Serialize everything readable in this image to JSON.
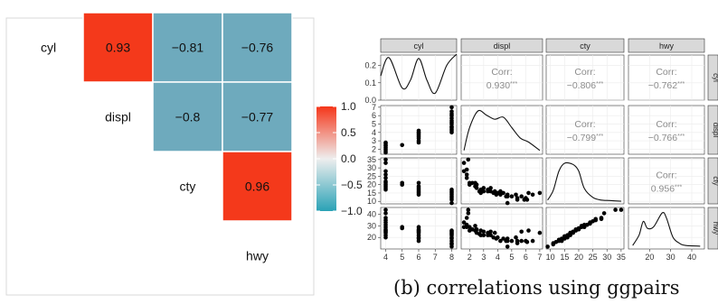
{
  "caption": "(b) correlations using ggpairs",
  "corr_label": "Corr:",
  "stars": "***",
  "chart_data": [
    {
      "type": "heatmap",
      "variables": [
        "cyl",
        "displ",
        "cty",
        "hwy"
      ],
      "cells": [
        {
          "row": "displ",
          "col": "cyl",
          "value": 0.93,
          "label": "0.93"
        },
        {
          "row": "cty",
          "col": "cyl",
          "value": -0.81,
          "label": "−0.81"
        },
        {
          "row": "cty",
          "col": "displ",
          "value": -0.8,
          "label": "−0.8"
        },
        {
          "row": "hwy",
          "col": "cyl",
          "value": -0.76,
          "label": "−0.76"
        },
        {
          "row": "hwy",
          "col": "displ",
          "value": -0.77,
          "label": "−0.77"
        },
        {
          "row": "hwy",
          "col": "cty",
          "value": 0.96,
          "label": "0.96"
        }
      ],
      "legend": {
        "min": -1.0,
        "max": 1.0,
        "ticks": [
          "1.0",
          "0.5",
          "0.0",
          "−0.5",
          "−1.0"
        ],
        "tick_values": [
          1.0,
          0.5,
          0.0,
          -0.5,
          -1.0
        ],
        "low_color": "#2aa2b6",
        "mid_color": "#eeeeee",
        "high_color": "#f5361a"
      },
      "tile_colors": {
        "strong_positive": "#f4391b",
        "strong_negative": "#6eaabd"
      }
    },
    {
      "type": "scatter",
      "variables": [
        "cyl",
        "displ",
        "cty",
        "hwy"
      ],
      "correlations": [
        {
          "row": "cyl",
          "col": "displ",
          "value": "0.930"
        },
        {
          "row": "cyl",
          "col": "cty",
          "value": "−0.806"
        },
        {
          "row": "cyl",
          "col": "hwy",
          "value": "−0.762"
        },
        {
          "row": "displ",
          "col": "cty",
          "value": "−0.799"
        },
        {
          "row": "displ",
          "col": "hwy",
          "value": "−0.766"
        },
        {
          "row": "cty",
          "col": "hwy",
          "value": "0.956"
        }
      ],
      "x_axes": {
        "cyl": {
          "range": [
            3.7,
            8.3
          ],
          "ticks": [
            4,
            5,
            6,
            7,
            8
          ]
        },
        "displ": {
          "range": [
            1.4,
            7.2
          ],
          "ticks": [
            2,
            3,
            4,
            5,
            6,
            7
          ]
        },
        "cty": {
          "range": [
            8.5,
            36
          ],
          "ticks": [
            10,
            15,
            20,
            25,
            30,
            35
          ]
        },
        "hwy": {
          "range": [
            10,
            46
          ],
          "ticks": [
            20,
            30,
            40
          ]
        }
      },
      "y_axes": {
        "cyl": {
          "range": [
            0,
            0.26
          ],
          "ticks": [
            "0.0",
            "0.1",
            "0.2"
          ],
          "tick_values": [
            0.0,
            0.1,
            0.2
          ]
        },
        "displ": {
          "range": [
            1.4,
            7.2
          ],
          "ticks": [
            2,
            3,
            4,
            5,
            6,
            7
          ]
        },
        "cty": {
          "range": [
            8.5,
            36
          ],
          "ticks": [
            10,
            15,
            20,
            25,
            30,
            35
          ]
        },
        "hwy": {
          "range": [
            10,
            46
          ],
          "ticks": [
            20,
            30,
            40
          ]
        }
      },
      "densities": {
        "cyl": {
          "x": [
            3.7,
            4.2,
            5.0,
            5.5,
            6.0,
            6.5,
            7.0,
            7.7,
            8.3
          ],
          "y": [
            0.14,
            0.245,
            0.07,
            0.115,
            0.24,
            0.115,
            0.04,
            0.2,
            0.265
          ]
        },
        "displ": {
          "x": [
            1.6,
            2.0,
            2.6,
            3.2,
            3.8,
            4.4,
            5.0,
            5.6,
            6.2,
            7.0
          ],
          "y": [
            0.05,
            0.6,
            1.0,
            0.9,
            0.8,
            0.85,
            0.6,
            0.35,
            0.25,
            0.05
          ]
        },
        "cty": {
          "x": [
            9,
            11,
            13,
            15,
            18,
            20,
            22,
            25,
            28,
            31,
            35
          ],
          "y": [
            0.05,
            0.3,
            0.8,
            1.0,
            0.97,
            0.8,
            0.35,
            0.12,
            0.05,
            0.04,
            0.02
          ]
        },
        "hwy": {
          "x": [
            12,
            15,
            17,
            19,
            22,
            26,
            28,
            31,
            34,
            37,
            44
          ],
          "y": [
            0.05,
            0.35,
            0.75,
            0.55,
            0.6,
            1.0,
            0.85,
            0.3,
            0.12,
            0.05,
            0.03
          ]
        }
      },
      "scatter_displ_vs_cyl": [
        [
          4,
          1.6
        ],
        [
          4,
          1.8
        ],
        [
          4,
          2.0
        ],
        [
          4,
          2.2
        ],
        [
          4,
          2.4
        ],
        [
          4,
          2.5
        ],
        [
          4,
          2.7
        ],
        [
          4,
          2.8
        ],
        [
          5,
          2.5
        ],
        [
          6,
          2.8
        ],
        [
          6,
          3.0
        ],
        [
          6,
          3.3
        ],
        [
          6,
          3.5
        ],
        [
          6,
          3.7
        ],
        [
          6,
          3.9
        ],
        [
          6,
          4.0
        ],
        [
          6,
          4.2
        ],
        [
          8,
          4.0
        ],
        [
          8,
          4.2
        ],
        [
          8,
          4.4
        ],
        [
          8,
          4.6
        ],
        [
          8,
          4.7
        ],
        [
          8,
          5.0
        ],
        [
          8,
          5.2
        ],
        [
          8,
          5.4
        ],
        [
          8,
          5.7
        ],
        [
          8,
          6.0
        ],
        [
          8,
          6.2
        ],
        [
          8,
          6.5
        ],
        [
          8,
          7.0
        ]
      ],
      "scatter_cty_vs_cyl": [
        [
          4,
          35
        ],
        [
          4,
          33
        ],
        [
          4,
          28
        ],
        [
          4,
          26
        ],
        [
          4,
          24
        ],
        [
          4,
          22
        ],
        [
          4,
          21
        ],
        [
          4,
          20
        ],
        [
          4,
          19
        ],
        [
          4,
          18
        ],
        [
          4,
          17
        ],
        [
          5,
          20
        ],
        [
          5,
          21
        ],
        [
          6,
          21
        ],
        [
          6,
          19
        ],
        [
          6,
          18
        ],
        [
          6,
          17
        ],
        [
          6,
          16
        ],
        [
          6,
          15
        ],
        [
          6,
          14
        ],
        [
          8,
          17
        ],
        [
          8,
          16
        ],
        [
          8,
          15
        ],
        [
          8,
          14
        ],
        [
          8,
          13
        ],
        [
          8,
          12
        ],
        [
          8,
          11
        ],
        [
          8,
          9
        ]
      ],
      "scatter_cty_vs_displ": [
        [
          1.6,
          33
        ],
        [
          1.6,
          28
        ],
        [
          1.8,
          29
        ],
        [
          1.8,
          26
        ],
        [
          1.8,
          24
        ],
        [
          1.9,
          35
        ],
        [
          2.0,
          21
        ],
        [
          2.0,
          20
        ],
        [
          2.2,
          21
        ],
        [
          2.4,
          19
        ],
        [
          2.4,
          21
        ],
        [
          2.5,
          18
        ],
        [
          2.5,
          20
        ],
        [
          2.7,
          16
        ],
        [
          2.8,
          17
        ],
        [
          2.8,
          15
        ],
        [
          3.0,
          18
        ],
        [
          3.0,
          16
        ],
        [
          3.3,
          17
        ],
        [
          3.3,
          16
        ],
        [
          3.5,
          18
        ],
        [
          3.5,
          16
        ],
        [
          3.7,
          15
        ],
        [
          3.8,
          16
        ],
        [
          3.9,
          14
        ],
        [
          4.0,
          15
        ],
        [
          4.2,
          16
        ],
        [
          4.2,
          14
        ],
        [
          4.4,
          15
        ],
        [
          4.6,
          13
        ],
        [
          4.7,
          14
        ],
        [
          4.7,
          13
        ],
        [
          4.7,
          9
        ],
        [
          5.0,
          13
        ],
        [
          5.3,
          14
        ],
        [
          5.4,
          12
        ],
        [
          5.4,
          11
        ],
        [
          5.7,
          13
        ],
        [
          5.9,
          11
        ],
        [
          6.0,
          12
        ],
        [
          6.1,
          11
        ],
        [
          6.2,
          15
        ],
        [
          6.5,
          14
        ],
        [
          7.0,
          15
        ]
      ],
      "scatter_hwy_vs_cyl": [
        [
          4,
          44
        ],
        [
          4,
          41
        ],
        [
          4,
          37
        ],
        [
          4,
          35
        ],
        [
          4,
          33
        ],
        [
          4,
          31
        ],
        [
          4,
          29
        ],
        [
          4,
          27
        ],
        [
          4,
          26
        ],
        [
          4,
          25
        ],
        [
          4,
          24
        ],
        [
          4,
          22
        ],
        [
          4,
          20
        ],
        [
          5,
          28
        ],
        [
          5,
          29
        ],
        [
          6,
          29
        ],
        [
          6,
          27
        ],
        [
          6,
          26
        ],
        [
          6,
          25
        ],
        [
          6,
          24
        ],
        [
          6,
          22
        ],
        [
          6,
          20
        ],
        [
          6,
          19
        ],
        [
          6,
          17
        ],
        [
          8,
          26
        ],
        [
          8,
          25
        ],
        [
          8,
          24
        ],
        [
          8,
          23
        ],
        [
          8,
          22
        ],
        [
          8,
          20
        ],
        [
          8,
          19
        ],
        [
          8,
          17
        ],
        [
          8,
          15
        ],
        [
          8,
          14
        ],
        [
          8,
          12
        ]
      ],
      "scatter_hwy_vs_displ": [
        [
          1.6,
          33
        ],
        [
          1.6,
          29
        ],
        [
          1.8,
          37
        ],
        [
          1.8,
          29
        ],
        [
          1.8,
          31
        ],
        [
          1.9,
          44
        ],
        [
          1.9,
          41
        ],
        [
          2.0,
          26
        ],
        [
          2.0,
          29
        ],
        [
          2.2,
          27
        ],
        [
          2.4,
          26
        ],
        [
          2.4,
          30
        ],
        [
          2.5,
          24
        ],
        [
          2.5,
          27
        ],
        [
          2.7,
          23
        ],
        [
          2.8,
          26
        ],
        [
          2.8,
          22
        ],
        [
          3.0,
          25
        ],
        [
          3.0,
          22
        ],
        [
          3.3,
          24
        ],
        [
          3.3,
          22
        ],
        [
          3.5,
          25
        ],
        [
          3.5,
          22
        ],
        [
          3.7,
          20
        ],
        [
          3.8,
          24
        ],
        [
          3.9,
          19
        ],
        [
          4.0,
          20
        ],
        [
          4.2,
          17
        ],
        [
          4.4,
          19
        ],
        [
          4.6,
          17
        ],
        [
          4.7,
          19
        ],
        [
          4.7,
          17
        ],
        [
          4.7,
          12
        ],
        [
          5.0,
          17
        ],
        [
          5.3,
          20
        ],
        [
          5.4,
          17
        ],
        [
          5.4,
          15
        ],
        [
          5.7,
          25
        ],
        [
          5.7,
          17
        ],
        [
          6.0,
          17
        ],
        [
          6.1,
          16
        ],
        [
          6.2,
          26
        ],
        [
          6.5,
          17
        ],
        [
          7.0,
          24
        ]
      ],
      "scatter_hwy_vs_cty": [
        [
          9,
          12
        ],
        [
          11,
          14
        ],
        [
          11,
          15
        ],
        [
          12,
          16
        ],
        [
          13,
          17
        ],
        [
          13,
          18
        ],
        [
          14,
          17
        ],
        [
          14,
          19
        ],
        [
          15,
          19
        ],
        [
          15,
          21
        ],
        [
          16,
          20
        ],
        [
          16,
          22
        ],
        [
          17,
          22
        ],
        [
          17,
          24
        ],
        [
          18,
          24
        ],
        [
          18,
          25
        ],
        [
          19,
          26
        ],
        [
          19,
          27
        ],
        [
          20,
          27
        ],
        [
          20,
          28
        ],
        [
          21,
          29
        ],
        [
          21,
          30
        ],
        [
          22,
          29
        ],
        [
          22,
          31
        ],
        [
          23,
          31
        ],
        [
          24,
          32
        ],
        [
          24,
          33
        ],
        [
          25,
          34
        ],
        [
          26,
          35
        ],
        [
          26,
          36
        ],
        [
          28,
          36
        ],
        [
          28,
          37
        ],
        [
          29,
          41
        ],
        [
          33,
          44
        ],
        [
          35,
          44
        ]
      ]
    }
  ]
}
